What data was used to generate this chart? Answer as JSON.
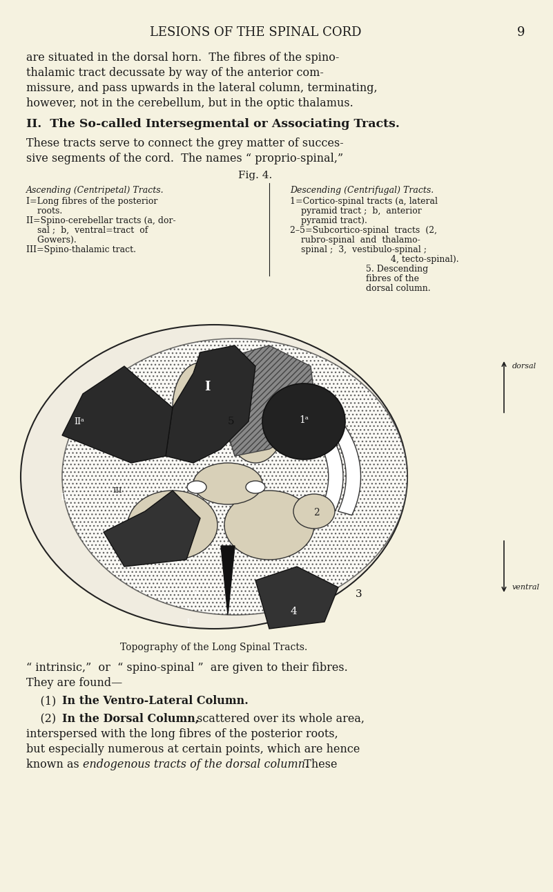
{
  "page_bg": "#f5f2e0",
  "text_color": "#1a1a1a",
  "header": "LESIONS OF THE SPINAL CORD",
  "page_num": "9",
  "para1": "are situated in the dorsal horn.  The fibres of the spino-\nthalamic tract decussate by way of the anterior com-\nmissure, and pass upwards in the lateral column, terminating,\nhowever, not in the cerebellum, but in the optic thalamus.",
  "heading2": "II.  The So-called Intersegmental or Associating Tracts.",
  "para2": "These tracts serve to connect the grey matter of succes-\nsive segments of the cord.  The names “ proprio-spinal,”",
  "fig_label": "Fig. 4.",
  "asc_title": "Ascending (Centripetal) Tracts.",
  "asc_lines": [
    "I=Long fibres of the posterior",
    "    roots.",
    "II=Spino-cerebellar tracts (a, dor-",
    "    sal ;  b,  ventral=tract  of",
    "    Gowers).",
    "III=Spino-thalamic tract."
  ],
  "desc_title": "Descending (Centrifugal) Tracts.",
  "desc_lines": [
    "1=Cortico-spinal tracts (a, lateral",
    "    pyramid tract ;  b,  anterior",
    "    pyramid tract).",
    "2–5=Subcortico-spinal  tracts  (2,",
    "    rubro-spinal  and  thalamo-",
    "    spinal ;  3,  vestibulo-spinal ;",
    "         4, tecto-spinal).",
    "5. Descending",
    "fibres of the",
    "dorsal column."
  ],
  "caption": "Topography of the Long Spinal Tracts.",
  "para3_intro": "“ intrinsic,”  or  “ spino-spinal ”  are given to their fibres.",
  "para3b": "They are found—",
  "para4": "    (1)  In the Ventro-Lateral Column.",
  "para5_intro": "    (2)  In the Dorsal Column,",
  "para5_rest": " scattered over its whole area,\ninterspersed with the long fibres of the posterior roots,\nbut especially numerous at certain points, which are hence\nknown as endogenous tracts of the dorsal column.  These"
}
